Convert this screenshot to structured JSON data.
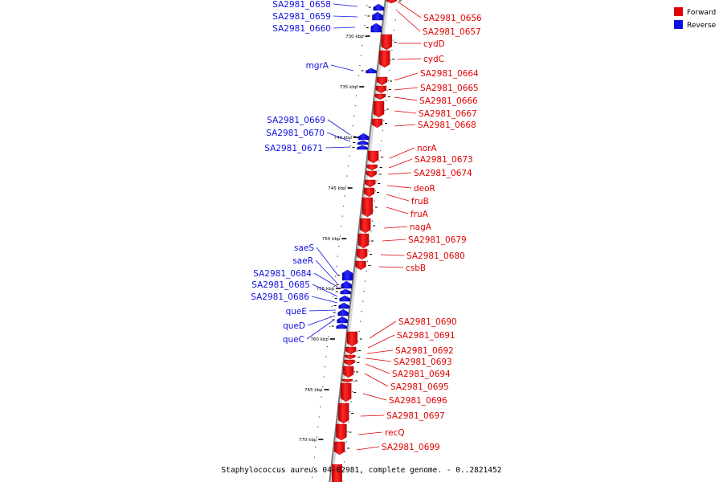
{
  "caption": "Staphylococcus aureus 04-02981, complete genome. - 0..2821452",
  "legend": {
    "forward_label": "Forward",
    "reverse_label": "Reverse",
    "forward_color": "#e00000",
    "reverse_color": "#1010e0"
  },
  "scale_ticks": [
    "730 kbp",
    "735 kbp",
    "740 kbp",
    "745 kbp",
    "750 kbp",
    "755 kbp",
    "760 kbp",
    "765 kbp",
    "770 kbp"
  ],
  "forward_genes": [
    "SA2981_0656",
    "SA2981_0657",
    "cydD",
    "cydC",
    "SA2981_0664",
    "SA2981_0665",
    "SA2981_0666",
    "SA2981_0667",
    "SA2981_0668",
    "norA",
    "SA2981_0673",
    "SA2981_0674",
    "deoR",
    "fruB",
    "fruA",
    "nagA",
    "SA2981_0679",
    "SA2981_0680",
    "csbB",
    "SA2981_0690",
    "SA2981_0691",
    "SA2981_0692",
    "SA2981_0693",
    "SA2981_0694",
    "SA2981_0695",
    "SA2981_0696",
    "SA2981_0697",
    "recQ",
    "SA2981_0699"
  ],
  "reverse_genes": [
    "SA2981_0658",
    "SA2981_0659",
    "SA2981_0660",
    "mgrA",
    "SA2981_0669",
    "SA2981_0670",
    "SA2981_0671",
    "saeS",
    "saeR",
    "SA2981_0684",
    "SA2981_0685",
    "SA2981_0686",
    "queE",
    "queD",
    "queC"
  ]
}
